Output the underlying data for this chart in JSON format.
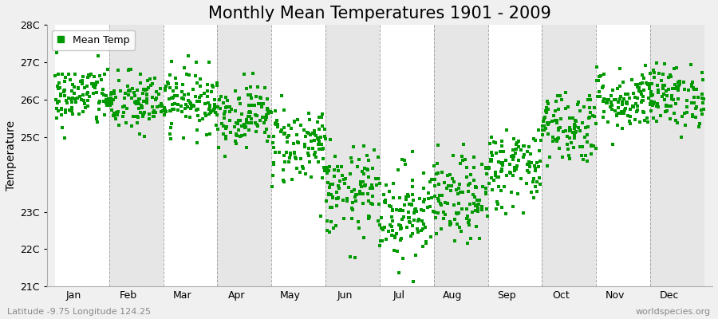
{
  "title": "Monthly Mean Temperatures 1901 - 2009",
  "ylabel": "Temperature",
  "bottom_left_text": "Latitude -9.75 Longitude 124.25",
  "bottom_right_text": "worldspecies.org",
  "legend_label": "Mean Temp",
  "marker_color": "#009900",
  "background_color": "#f0f0f0",
  "band_white": "#ffffff",
  "band_gray": "#e6e6e6",
  "ylim": [
    21,
    28
  ],
  "yticks": [
    21,
    22,
    23,
    25,
    26,
    27,
    28
  ],
  "ytick_labels": [
    "21C",
    "22C",
    "23C",
    "25C",
    "26C",
    "27C",
    "28C"
  ],
  "months": [
    "Jan",
    "Feb",
    "Mar",
    "Apr",
    "May",
    "Jun",
    "Jul",
    "Aug",
    "Sep",
    "Oct",
    "Nov",
    "Dec"
  ],
  "monthly_means": [
    26.1,
    25.9,
    26.0,
    25.6,
    24.8,
    23.5,
    23.0,
    23.3,
    24.2,
    25.3,
    26.0,
    26.1
  ],
  "monthly_stds": [
    0.42,
    0.42,
    0.42,
    0.42,
    0.55,
    0.6,
    0.65,
    0.58,
    0.55,
    0.5,
    0.42,
    0.42
  ],
  "n_years": 109,
  "seed": 42,
  "title_fontsize": 15,
  "axis_label_fontsize": 10,
  "tick_fontsize": 9,
  "marker_size": 3.5,
  "dashed_line_color": "#888888"
}
